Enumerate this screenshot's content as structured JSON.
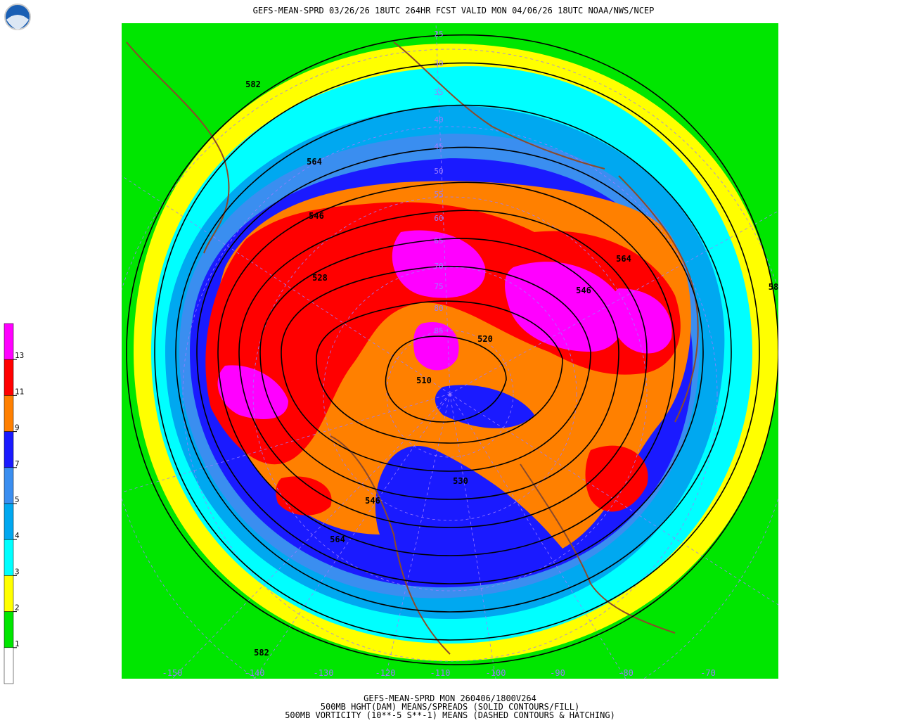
{
  "header": {
    "title": "GEFS-MEAN-SPRD 03/26/26 18UTC 264HR FCST VALID MON 04/06/26 18UTC NOAA/NWS/NCEP"
  },
  "footer": {
    "lines": [
      "GEFS-MEAN-SPRD MON 260406/1800V264",
      "500MB HGHT(DAM) MEANS/SPREADS (SOLID CONTOURS/FILL)",
      "500MB VORTICITY (10**-5 S**-1) MEANS (DASHED CONTOURS & HATCHING)"
    ]
  },
  "colorbar": {
    "colors": [
      "#ff00ff",
      "#ff0000",
      "#ff8000",
      "#1a1aff",
      "#3a8ef0",
      "#00a8f0",
      "#00ffff",
      "#ffff00",
      "#00e600",
      "#ffffff"
    ],
    "ticks": [
      13,
      11,
      9,
      7,
      5,
      4,
      3,
      2,
      1
    ]
  },
  "map": {
    "contour_labels": [
      582,
      564,
      546,
      528,
      564,
      546,
      520,
      510,
      530,
      546,
      564,
      582,
      58
    ],
    "longitude_labels": [
      -150,
      -140,
      -130,
      -120,
      -110,
      -100,
      -90,
      -80,
      -70
    ],
    "latitude_labels": [
      25,
      30,
      35,
      40,
      45,
      50,
      55,
      60,
      65,
      70,
      75,
      80,
      85
    ]
  }
}
